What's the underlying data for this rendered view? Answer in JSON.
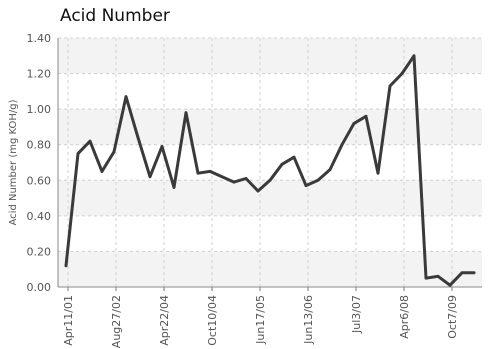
{
  "chart_data": {
    "type": "line",
    "title": "Acid Number",
    "ylabel": "Acid Number (mg KOH/g)",
    "xlabel": "",
    "ylim": [
      0,
      1.4
    ],
    "yticks": [
      "0.00",
      "0.20",
      "0.40",
      "0.60",
      "0.80",
      "1.00",
      "1.20",
      "1.40"
    ],
    "xtick_labels": [
      "Apr11/01",
      "Aug27/02",
      "Apr22/04",
      "Oct10/04",
      "Jun17/05",
      "Jun13/06",
      "Jul3/07",
      "Apr6/08",
      "Oct7/09"
    ],
    "grid": true,
    "legend": "none",
    "colors": {
      "line": "#3a3a3a",
      "band": "#f3f3f3",
      "grid": "#d0d0d0"
    },
    "series": [
      {
        "values": [
          0.12,
          0.75,
          0.82,
          0.65,
          0.76,
          1.07,
          0.84,
          0.62,
          0.79,
          0.56,
          0.98,
          0.64,
          0.65,
          0.62,
          0.59,
          0.61,
          0.54,
          0.6,
          0.69,
          0.73,
          0.57,
          0.6,
          0.66,
          0.8,
          0.92,
          0.96,
          0.64,
          1.13,
          1.2,
          1.3,
          0.05,
          0.06,
          0.01,
          0.08,
          0.08
        ]
      }
    ]
  }
}
